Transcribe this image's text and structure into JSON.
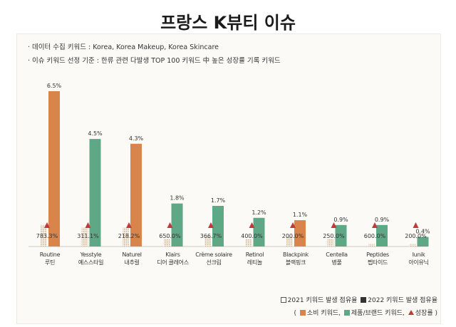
{
  "title": "프랑스 K뷰티 이슈",
  "notes": [
    "· 데이터 수집 키워드 : Korea, Korea Makeup, Korea Skincare",
    "· 이슈 키워드 선정 기준 : 한류 관련 다발생 TOP 100 키워드 中 높은 성장률 기록 키워드"
  ],
  "legend": {
    "share_2021": "2021 키워드 발생 점유율",
    "share_2022": "2022 키워드 발생 점유율",
    "open_paren": "(",
    "consumer": "소비 키워드,",
    "product": "제품/브랜드 키워드,",
    "growth": "성장률",
    "close_paren": ")"
  },
  "colors": {
    "consumer": "#d8844a",
    "product": "#5fa886",
    "growth_marker": "#c0393b",
    "baseline": "#cfcac0"
  },
  "chart_data": {
    "type": "bar",
    "title": "프랑스 K뷰티 이슈",
    "ylim": [
      0,
      7
    ],
    "categories": [
      {
        "en": "Routine",
        "ko": "루틴",
        "kind": "consumer"
      },
      {
        "en": "Yesstyle",
        "ko": "예스스타일",
        "kind": "product"
      },
      {
        "en": "Naturel",
        "ko": "내추럴",
        "kind": "consumer"
      },
      {
        "en": "Klairs",
        "ko": "디어 클레어스",
        "kind": "product"
      },
      {
        "en": "Crème solaire",
        "ko": "선크림",
        "kind": "product"
      },
      {
        "en": "Retinol",
        "ko": "레티놀",
        "kind": "product"
      },
      {
        "en": "Blackpink",
        "ko": "블랙핑크",
        "kind": "consumer"
      },
      {
        "en": "Centella",
        "ko": "병풀",
        "kind": "product"
      },
      {
        "en": "Peptides",
        "ko": "펩타이드",
        "kind": "product"
      },
      {
        "en": "Iunik",
        "ko": "아이유닉",
        "kind": "product"
      }
    ],
    "series": [
      {
        "name": "2021 키워드 발생 점유율",
        "values": [
          0.9,
          0.8,
          0.8,
          0.3,
          0.4,
          0.3,
          0.4,
          0.3,
          0.1,
          0.1
        ]
      },
      {
        "name": "2022 키워드 발생 점유율",
        "values": [
          6.5,
          4.5,
          4.3,
          1.8,
          1.7,
          1.2,
          1.1,
          0.9,
          0.9,
          0.4
        ]
      }
    ],
    "share_2022_labels": [
      "6.5%",
      "4.5%",
      "4.3%",
      "1.8%",
      "1.7%",
      "1.2%",
      "1.1%",
      "0.9%",
      "0.9%",
      "0.4%"
    ],
    "growth": [
      783.3,
      311.1,
      218.2,
      650.0,
      366.7,
      400.0,
      200.0,
      250.0,
      600.0,
      200.0
    ],
    "growth_labels": [
      "783.3%",
      "311.1%",
      "218.2%",
      "650.0%",
      "366.7%",
      "400.0%",
      "200.0%",
      "250.0%",
      "600.0%",
      "200.0%"
    ]
  }
}
